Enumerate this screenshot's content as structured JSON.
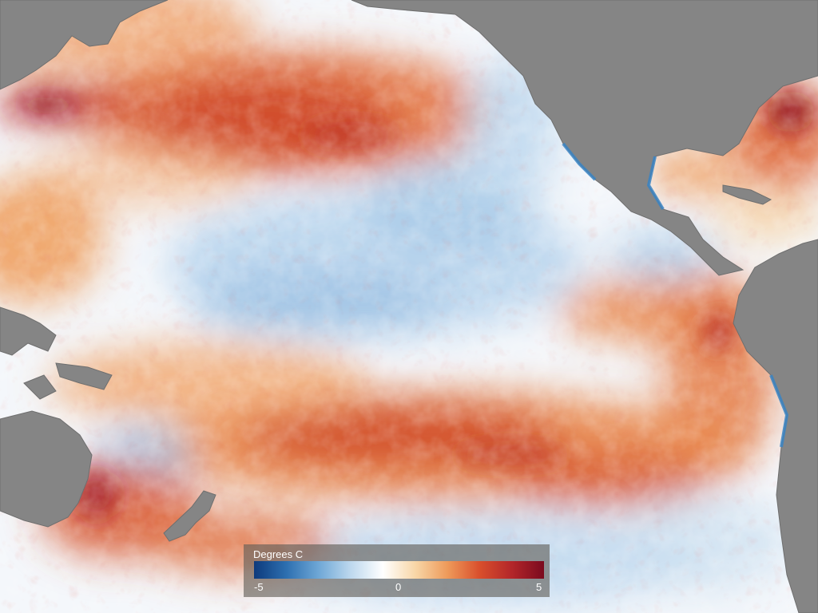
{
  "map": {
    "colors": {
      "land": "#858585",
      "land_border": "#6f6f6f",
      "coast_cool": "#3a84c3"
    },
    "scale": {
      "title": "Degrees C",
      "min_label": "-5",
      "mid_label": "0",
      "max_label": "5",
      "stops": [
        "#0d3a7c",
        "#2d6fb0",
        "#6ea7d6",
        "#bdd8ee",
        "#ffffff",
        "#f8d7a8",
        "#ee9a5a",
        "#d94f2c",
        "#b3262a",
        "#7a0a1e"
      ]
    }
  }
}
